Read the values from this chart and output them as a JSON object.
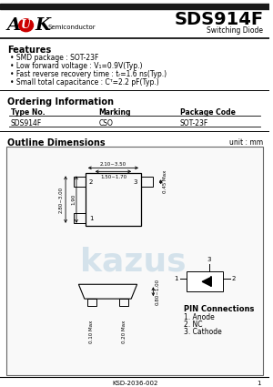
{
  "title": "SDS914F",
  "subtitle": "Switching Diode",
  "features_title": "Features",
  "features": [
    "SMD package : SOT-23F",
    "Low forward voltage : V₁=0.9V(Typ.)",
    "Fast reverse recovery time : tᵣ=1.6 ns(Typ.)",
    "Small total capacitance : Cᵀ=2.2 pF(Typ.)"
  ],
  "ordering_title": "Ordering Information",
  "table_headers": [
    "Type No.",
    "Marking",
    "Package Code"
  ],
  "table_row": [
    "SDS914F",
    "CSO",
    "SOT-23F"
  ],
  "outline_title": "Outline Dimensions",
  "unit_label": "unit : mm",
  "pin_connections_title": "PIN Connections",
  "pin_connections": [
    "1. Anode",
    "2. NC",
    "3. Cathode"
  ],
  "footer": "KSD-2036-002",
  "page_num": "1",
  "dim_labels": {
    "top_outer": "2.10~3.50",
    "top_inner": "1.50~1.70",
    "left_outer": "2.80~3.00",
    "left_inner": "1.90",
    "right_pin": "0.45 Max",
    "side_height": "0.80~1.00",
    "lead1": "0.10 Max",
    "lead2": "0.20 Max"
  },
  "bg_color": "#ffffff",
  "header_bar_color": "#1a1a1a",
  "logo_red": "#cc0000"
}
